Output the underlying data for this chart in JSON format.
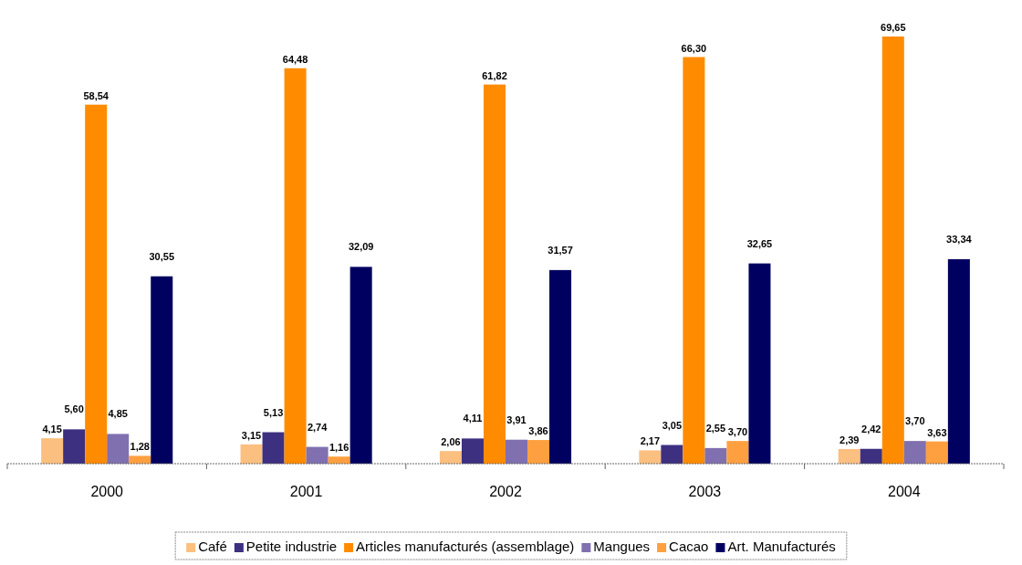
{
  "chart_data": {
    "type": "bar",
    "categories": [
      "2000",
      "2001",
      "2002",
      "2003",
      "2004"
    ],
    "series": [
      {
        "name": "Café",
        "color": "#fbbf80",
        "values": [
          4.15,
          3.15,
          2.06,
          2.17,
          2.39
        ],
        "value_labels": [
          "4,15",
          "3,15",
          "2,06",
          "2,17",
          "2,39"
        ]
      },
      {
        "name": "Petite industrie",
        "color": "#3d3080",
        "values": [
          5.6,
          5.13,
          4.11,
          3.05,
          2.42
        ],
        "value_labels": [
          "5,60",
          "5,13",
          "4,11",
          "3,05",
          "2,42"
        ]
      },
      {
        "name": "Articles manufacturés (assemblage)",
        "color": "#ff8c00",
        "values": [
          58.54,
          64.48,
          61.82,
          66.3,
          69.65
        ],
        "value_labels": [
          "58,54",
          "64,48",
          "61,82",
          "66,30",
          "69,65"
        ]
      },
      {
        "name": "Mangues",
        "color": "#8070b0",
        "values": [
          4.85,
          2.74,
          3.91,
          2.55,
          3.7
        ],
        "value_labels": [
          "4,85",
          "2,74",
          "3,91",
          "2,55",
          "3,70"
        ]
      },
      {
        "name": "Cacao",
        "color": "#ffa040",
        "values": [
          1.28,
          1.16,
          3.86,
          3.7,
          3.63
        ],
        "value_labels": [
          "1,28",
          "1,16",
          "3,86",
          "3,70",
          "3,63"
        ]
      },
      {
        "name": "Art. Manufacturés",
        "color": "#000060",
        "values": [
          30.55,
          32.09,
          31.57,
          32.65,
          33.34
        ],
        "value_labels": [
          "30,55",
          "32,09",
          "31,57",
          "32,65",
          "33,34"
        ]
      }
    ],
    "legend": "bottom"
  }
}
